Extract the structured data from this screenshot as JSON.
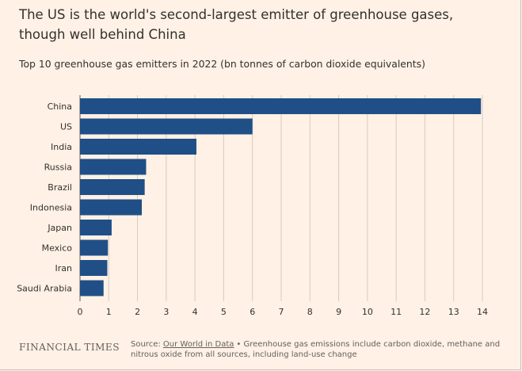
{
  "title": "The US is the world's second-largest emitter of greenhouse gases, though well behind China",
  "subtitle": "Top 10 greenhouse gas emitters in 2022 (bn tonnes of carbon dioxide equivalents)",
  "footer": {
    "brand": "FINANCIAL TIMES",
    "source_prefix": "Source: ",
    "source_link": "Our World in Data",
    "source_note": "• Greenhouse gas emissions include carbon dioxide, methane and nitrous oxide from all sources, including land-use change"
  },
  "colors": {
    "background": "#fff1e5",
    "bar": "#1f4f86",
    "gridline": "#d6cbc1",
    "text": "#33302e"
  },
  "chart_data": {
    "type": "bar",
    "orientation": "horizontal",
    "categories": [
      "China",
      "US",
      "India",
      "Russia",
      "Brazil",
      "Indonesia",
      "Japan",
      "Mexico",
      "Iran",
      "Saudi Arabia"
    ],
    "values": [
      13.95,
      6.0,
      4.05,
      2.3,
      2.25,
      2.15,
      1.1,
      0.97,
      0.95,
      0.82
    ],
    "xlim": [
      0,
      14
    ],
    "xticks": [
      0,
      1,
      2,
      3,
      4,
      5,
      6,
      7,
      8,
      9,
      10,
      11,
      12,
      13,
      14
    ],
    "grid": true
  }
}
